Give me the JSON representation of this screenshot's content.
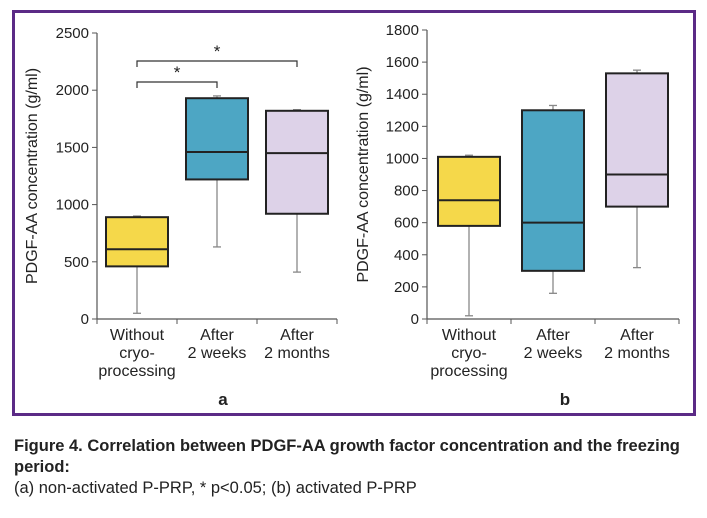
{
  "figure": {
    "caption_title": "Figure 4. Correlation between PDGF-AA growth factor concentration and the freezing period:",
    "caption_note": "(a) non-activated P-PRP, * p<0.05; (b) activated P-PRP"
  },
  "chart_data": [
    {
      "type": "box",
      "panel_label": "a",
      "ylabel": "PDGF-AA concentration (g/ml)",
      "ylim": [
        0,
        2500
      ],
      "yticks": [
        0,
        500,
        1000,
        1500,
        2000,
        2500
      ],
      "grid": false,
      "categories": [
        [
          "Without",
          "cryo-",
          "processing"
        ],
        [
          "After",
          "2 weeks"
        ],
        [
          "After",
          "2 months"
        ]
      ],
      "boxes": [
        {
          "min": 50,
          "q1": 460,
          "median": 610,
          "q3": 890,
          "max": 900,
          "color": "#f5d84a"
        },
        {
          "min": 630,
          "q1": 1220,
          "median": 1460,
          "q3": 1930,
          "max": 1950,
          "color": "#4da6c4"
        },
        {
          "min": 410,
          "q1": 920,
          "median": 1450,
          "q3": 1820,
          "max": 1830,
          "color": "#ddd2e8"
        }
      ],
      "significance": [
        {
          "from": 0,
          "to": 1,
          "label": "*"
        },
        {
          "from": 0,
          "to": 2,
          "label": "*"
        }
      ]
    },
    {
      "type": "box",
      "panel_label": "b",
      "ylabel": "PDGF-AA concentration (g/ml)",
      "ylim": [
        0,
        1800
      ],
      "yticks": [
        0,
        200,
        400,
        600,
        800,
        1000,
        1200,
        1400,
        1600,
        1800
      ],
      "grid": false,
      "categories": [
        [
          "Without",
          "cryo-",
          "processing"
        ],
        [
          "After",
          "2 weeks"
        ],
        [
          "After",
          "2 months"
        ]
      ],
      "boxes": [
        {
          "min": 20,
          "q1": 580,
          "median": 740,
          "q3": 1010,
          "max": 1020,
          "color": "#f5d84a"
        },
        {
          "min": 160,
          "q1": 300,
          "median": 600,
          "q3": 1300,
          "max": 1330,
          "color": "#4da6c4"
        },
        {
          "min": 320,
          "q1": 700,
          "median": 900,
          "q3": 1530,
          "max": 1550,
          "color": "#ddd2e8"
        }
      ],
      "significance": []
    }
  ]
}
